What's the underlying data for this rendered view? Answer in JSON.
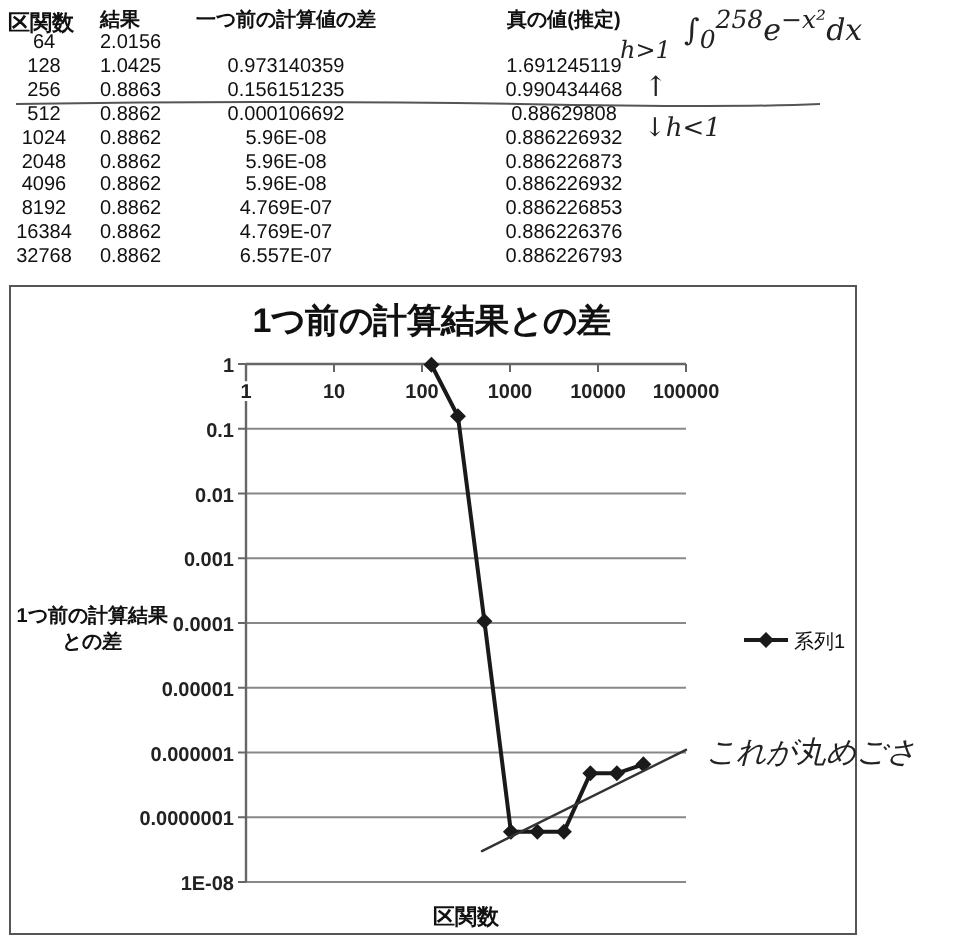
{
  "chart_data": [
    {
      "type": "other",
      "xlabel": "区関数",
      "categories": [
        "64",
        "128",
        "256",
        "512",
        "1024",
        "2048",
        "4096",
        "8192",
        "16384",
        "32768"
      ],
      "series": [
        {
          "name": "結果",
          "values": [
            2.0156,
            1.0425,
            0.8863,
            0.8862,
            0.8862,
            0.8862,
            0.8862,
            0.8862,
            0.8862,
            0.8862
          ],
          "value_labels": [
            "2.0156",
            "1.0425",
            "0.8863",
            "0.8862",
            "0.8862",
            "0.8862",
            "0.8862",
            "0.8862",
            "0.8862",
            "0.8862"
          ]
        },
        {
          "name": "一つ前の計算値の差",
          "values": [
            null,
            0.973140359,
            0.156151235,
            0.000106692,
            5.96e-08,
            5.96e-08,
            5.96e-08,
            4.769e-07,
            4.769e-07,
            6.557e-07
          ],
          "value_labels": [
            null,
            "0.973140359",
            "0.156151235",
            "0.000106692",
            "5.96E-08",
            "5.96E-08",
            "5.96E-08",
            "4.769E-07",
            "4.769E-07",
            "6.557E-07"
          ]
        },
        {
          "name": "真の値(推定)",
          "values": [
            null,
            1.691245119,
            0.990434468,
            0.88629808,
            0.886226932,
            0.886226873,
            0.886226932,
            0.886226853,
            0.886226376,
            0.886226793
          ],
          "value_labels": [
            null,
            "1.691245119",
            "0.990434468",
            "0.88629808",
            "0.886226932",
            "0.886226873",
            "0.886226932",
            "0.886226853",
            "0.886226376",
            "0.886226793"
          ]
        }
      ],
      "annotations": [
        "h>1",
        "↑",
        "∫$_{0}$$^{258}$e$^{−x²}$dx",
        "↓h<1"
      ]
    },
    {
      "type": "line",
      "title": "1つ前の計算結果との差",
      "xlabel": "区関数",
      "ylabel": "1つ前の計算結果との差",
      "log": "xy",
      "xlim": [
        1,
        100000
      ],
      "xticks": [
        1,
        10,
        100,
        1000,
        10000,
        100000
      ],
      "ylim": [
        1e-08,
        1
      ],
      "yticks": [
        1,
        0.1,
        0.01,
        0.001,
        0.0001,
        {
          "value": 1e-05,
          "label": "0.00001"
        },
        {
          "value": 1e-06,
          "label": "0.000001"
        },
        {
          "value": 1e-07,
          "label": "0.0000001"
        },
        {
          "value": 1e-08,
          "label": "1E-08"
        }
      ],
      "grid": "y",
      "legend": "right",
      "marker": "diamond",
      "line_style": "solid",
      "series": [
        {
          "name": "系列1",
          "color": "#1a1a1a",
          "x": [
            128,
            256,
            512,
            1024,
            2048,
            4096,
            8192,
            16384,
            32768
          ],
          "values": [
            0.973140359,
            0.156151235,
            0.000106692,
            5.96e-08,
            5.96e-08,
            5.96e-08,
            4.769e-07,
            4.769e-07,
            6.557e-07
          ]
        },
        {
          "type": "line",
          "marker": "none",
          "color": "#333333",
          "x": [
            480,
            100000
          ],
          "values": [
            3e-08,
            1.1e-06
          ]
        }
      ],
      "annotations": [
        "これが丸めごさ"
      ]
    }
  ]
}
